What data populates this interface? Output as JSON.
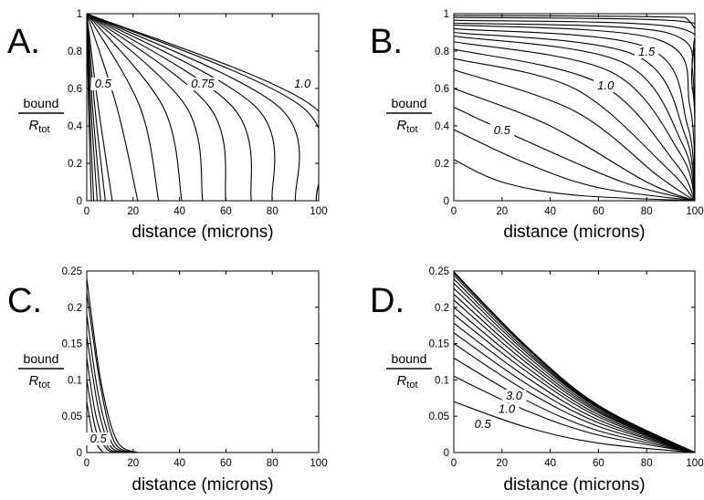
{
  "chart_data": [
    {
      "panel": "A.",
      "type": "line",
      "xlabel": "distance (microns)",
      "ylabel": {
        "top": "bound",
        "bottom_main": "R",
        "bottom_sub": "tot"
      },
      "xlim": [
        0,
        100
      ],
      "ylim": [
        0,
        1
      ],
      "xticks": [
        0,
        20,
        40,
        60,
        80,
        100
      ],
      "yticks": [
        0,
        0.2,
        0.4,
        0.6,
        0.8,
        1
      ],
      "ytick_labels": [
        "0",
        "0.2",
        "0.4",
        "0.6",
        "0.8",
        "1"
      ],
      "series": [
        {
          "values": [
            [
              0,
              1
            ],
            [
              0.8,
              0.5
            ],
            [
              2,
              0
            ]
          ]
        },
        {
          "values": [
            [
              0,
              1
            ],
            [
              1.2,
              0.5
            ],
            [
              3,
              0
            ]
          ]
        },
        {
          "values": [
            [
              0,
              1
            ],
            [
              1.8,
              0.5
            ],
            [
              4.5,
              0
            ]
          ]
        },
        {
          "values": [
            [
              0,
              1
            ],
            [
              2.5,
              0.5
            ],
            [
              6,
              0
            ]
          ]
        },
        {
          "values": [
            [
              0,
              1
            ],
            [
              3.5,
              0.5
            ],
            [
              8,
              0
            ]
          ]
        },
        {
          "values": [
            [
              0,
              1
            ],
            [
              5,
              0.5
            ],
            [
              11,
              0
            ]
          ]
        },
        {
          "values": [
            [
              0,
              1
            ],
            [
              13,
              0.5
            ],
            [
              22,
              0
            ]
          ]
        },
        {
          "values": [
            [
              0,
              1
            ],
            [
              23,
              0.5
            ],
            [
              31,
              0
            ]
          ]
        },
        {
          "values": [
            [
              0,
              1
            ],
            [
              33,
              0.5
            ],
            [
              41,
              0
            ]
          ]
        },
        {
          "values": [
            [
              0,
              1
            ],
            [
              43,
              0.5
            ],
            [
              50,
              0
            ]
          ]
        },
        {
          "values": [
            [
              0,
              1
            ],
            [
              53,
              0.5
            ],
            [
              60,
              0
            ]
          ]
        },
        {
          "values": [
            [
              0,
              1
            ],
            [
              63,
              0.5
            ],
            [
              71,
              0
            ]
          ]
        },
        {
          "values": [
            [
              0,
              1
            ],
            [
              73,
              0.5
            ],
            [
              80,
              0
            ]
          ]
        },
        {
          "values": [
            [
              0,
              1
            ],
            [
              83,
              0.5
            ],
            [
              90,
              0
            ]
          ]
        },
        {
          "values": [
            [
              0,
              1
            ],
            [
              93,
              0.5
            ],
            [
              99,
              0
            ]
          ]
        },
        {
          "values": [
            [
              0,
              1
            ],
            [
              98,
              0.5
            ],
            [
              100,
              0
            ]
          ]
        }
      ],
      "annotations": [
        {
          "text": "0.5",
          "x": 7,
          "y": 0.61
        },
        {
          "text": "0.75",
          "x": 50,
          "y": 0.61
        },
        {
          "text": "1.0",
          "x": 93,
          "y": 0.61
        }
      ]
    },
    {
      "panel": "B.",
      "type": "line",
      "xlabel": "distance (microns)",
      "ylabel": {
        "top": "bound",
        "bottom_main": "R",
        "bottom_sub": "tot"
      },
      "xlim": [
        0,
        100
      ],
      "ylim": [
        0,
        1
      ],
      "xticks": [
        0,
        20,
        40,
        60,
        80,
        100
      ],
      "yticks": [
        0,
        0.2,
        0.4,
        0.6,
        0.8,
        1
      ],
      "ytick_labels": [
        "0",
        "0.2",
        "0.4",
        "0.6",
        "0.8",
        "1"
      ],
      "series": [
        {
          "values": [
            [
              0,
              0.22
            ],
            [
              20,
              0.1
            ],
            [
              50,
              0.03
            ],
            [
              100,
              0
            ]
          ]
        },
        {
          "values": [
            [
              0,
              0.38
            ],
            [
              30,
              0.2
            ],
            [
              60,
              0.07
            ],
            [
              100,
              0
            ]
          ]
        },
        {
          "values": [
            [
              0,
              0.5
            ],
            [
              30,
              0.32
            ],
            [
              70,
              0.1
            ],
            [
              100,
              0
            ]
          ]
        },
        {
          "values": [
            [
              0,
              0.6
            ],
            [
              40,
              0.4
            ],
            [
              80,
              0.1
            ],
            [
              100,
              0
            ]
          ]
        },
        {
          "values": [
            [
              0,
              0.7
            ],
            [
              50,
              0.48
            ],
            [
              85,
              0.13
            ],
            [
              100,
              0
            ]
          ]
        },
        {
          "values": [
            [
              0,
              0.76
            ],
            [
              50,
              0.6
            ],
            [
              88,
              0.18
            ],
            [
              100,
              0
            ]
          ]
        },
        {
          "values": [
            [
              0,
              0.81
            ],
            [
              60,
              0.63
            ],
            [
              92,
              0.2
            ],
            [
              100,
              0
            ]
          ]
        },
        {
          "values": [
            [
              0,
              0.85
            ],
            [
              65,
              0.69
            ],
            [
              94,
              0.25
            ],
            [
              100,
              0
            ]
          ]
        },
        {
          "values": [
            [
              0,
              0.88
            ],
            [
              70,
              0.74
            ],
            [
              95,
              0.3
            ],
            [
              100,
              0
            ]
          ]
        },
        {
          "values": [
            [
              0,
              0.9
            ],
            [
              75,
              0.78
            ],
            [
              96,
              0.35
            ],
            [
              100,
              0
            ]
          ]
        },
        {
          "values": [
            [
              0,
              0.92
            ],
            [
              80,
              0.82
            ],
            [
              97,
              0.4
            ],
            [
              100,
              0
            ]
          ]
        },
        {
          "values": [
            [
              0,
              0.94
            ],
            [
              85,
              0.86
            ],
            [
              98,
              0.5
            ],
            [
              100,
              0
            ]
          ]
        },
        {
          "values": [
            [
              0,
              0.95
            ],
            [
              88,
              0.9
            ],
            [
              99,
              0.6
            ],
            [
              100,
              0
            ]
          ]
        },
        {
          "values": [
            [
              0,
              0.965
            ],
            [
              91,
              0.93
            ],
            [
              99,
              0.7
            ],
            [
              100,
              0
            ]
          ]
        },
        {
          "values": [
            [
              0,
              0.98
            ],
            [
              94,
              0.96
            ],
            [
              99.5,
              0.8
            ],
            [
              100,
              0
            ]
          ]
        },
        {
          "values": [
            [
              0,
              0.99
            ],
            [
              96,
              0.98
            ],
            [
              100,
              0
            ]
          ]
        }
      ],
      "annotations": [
        {
          "text": "0.5",
          "x": 20,
          "y": 0.36
        },
        {
          "text": "1.0",
          "x": 63,
          "y": 0.6
        },
        {
          "text": "1.5",
          "x": 80,
          "y": 0.78
        }
      ]
    },
    {
      "panel": "C.",
      "type": "line",
      "xlabel": "distance (microns)",
      "ylabel": {
        "top": "bound",
        "bottom_main": "R",
        "bottom_sub": "tot"
      },
      "xlim": [
        0,
        100
      ],
      "ylim": [
        0,
        0.25
      ],
      "xticks": [
        0,
        20,
        40,
        60,
        80,
        100
      ],
      "yticks": [
        0,
        0.05,
        0.1,
        0.15,
        0.2,
        0.25
      ],
      "ytick_labels": [
        "0",
        "0.05",
        "0.1",
        "0.15",
        "0.2",
        "0.25"
      ],
      "series": [
        {
          "values": [
            [
              0,
              0.07
            ],
            [
              3,
              0.02
            ],
            [
              7,
              0
            ]
          ]
        },
        {
          "values": [
            [
              0,
              0.1
            ],
            [
              4,
              0.03
            ],
            [
              9,
              0.004
            ],
            [
              12,
              0
            ]
          ]
        },
        {
          "values": [
            [
              0,
              0.13
            ],
            [
              4,
              0.05
            ],
            [
              9,
              0.008
            ],
            [
              14,
              0
            ]
          ]
        },
        {
          "values": [
            [
              0,
              0.16
            ],
            [
              5,
              0.06
            ],
            [
              10,
              0.01
            ],
            [
              16,
              0
            ]
          ]
        },
        {
          "values": [
            [
              0,
              0.19
            ],
            [
              5,
              0.08
            ],
            [
              11,
              0.012
            ],
            [
              18,
              0
            ]
          ]
        },
        {
          "values": [
            [
              0,
              0.22
            ],
            [
              6,
              0.09
            ],
            [
              12,
              0.014
            ],
            [
              20,
              0
            ]
          ]
        },
        {
          "values": [
            [
              0,
              0.24
            ],
            [
              6,
              0.1
            ],
            [
              13,
              0.016
            ],
            [
              22,
              0
            ]
          ]
        }
      ],
      "annotations": [
        {
          "text": "0.5",
          "x": 5,
          "y": 0.015
        }
      ]
    },
    {
      "panel": "D.",
      "type": "line",
      "xlabel": "distance (microns)",
      "ylabel": {
        "top": "bound",
        "bottom_main": "R",
        "bottom_sub": "tot"
      },
      "xlim": [
        0,
        100
      ],
      "ylim": [
        0,
        0.25
      ],
      "xticks": [
        0,
        20,
        40,
        60,
        80,
        100
      ],
      "yticks": [
        0,
        0.05,
        0.1,
        0.15,
        0.2,
        0.25
      ],
      "ytick_labels": [
        "0",
        "0.05",
        "0.1",
        "0.15",
        "0.2",
        "0.25"
      ],
      "series": [
        {
          "values": [
            [
              0,
              0.07
            ],
            [
              30,
              0.035
            ],
            [
              60,
              0.013
            ],
            [
              100,
              0
            ]
          ]
        },
        {
          "values": [
            [
              0,
              0.105
            ],
            [
              30,
              0.058
            ],
            [
              60,
              0.024
            ],
            [
              100,
              0
            ]
          ]
        },
        {
          "values": [
            [
              0,
              0.13
            ],
            [
              30,
              0.072
            ],
            [
              60,
              0.03
            ],
            [
              100,
              0
            ]
          ]
        },
        {
          "values": [
            [
              0,
              0.15
            ],
            [
              30,
              0.085
            ],
            [
              60,
              0.036
            ],
            [
              100,
              0
            ]
          ]
        },
        {
          "values": [
            [
              0,
              0.165
            ],
            [
              30,
              0.095
            ],
            [
              60,
              0.041
            ],
            [
              100,
              0
            ]
          ]
        },
        {
          "values": [
            [
              0,
              0.178
            ],
            [
              30,
              0.104
            ],
            [
              60,
              0.045
            ],
            [
              100,
              0
            ]
          ]
        },
        {
          "values": [
            [
              0,
              0.19
            ],
            [
              30,
              0.112
            ],
            [
              60,
              0.049
            ],
            [
              100,
              0
            ]
          ]
        },
        {
          "values": [
            [
              0,
              0.2
            ],
            [
              30,
              0.118
            ],
            [
              60,
              0.052
            ],
            [
              100,
              0
            ]
          ]
        },
        {
          "values": [
            [
              0,
              0.21
            ],
            [
              30,
              0.124
            ],
            [
              60,
              0.055
            ],
            [
              100,
              0
            ]
          ]
        },
        {
          "values": [
            [
              0,
              0.218
            ],
            [
              30,
              0.129
            ],
            [
              60,
              0.057
            ],
            [
              100,
              0
            ]
          ]
        },
        {
          "values": [
            [
              0,
              0.226
            ],
            [
              30,
              0.134
            ],
            [
              60,
              0.059
            ],
            [
              100,
              0
            ]
          ]
        },
        {
          "values": [
            [
              0,
              0.233
            ],
            [
              30,
              0.138
            ],
            [
              60,
              0.061
            ],
            [
              100,
              0
            ]
          ]
        },
        {
          "values": [
            [
              0,
              0.239
            ],
            [
              30,
              0.141
            ],
            [
              60,
              0.062
            ],
            [
              100,
              0
            ]
          ]
        },
        {
          "values": [
            [
              0,
              0.244
            ],
            [
              30,
              0.144
            ],
            [
              60,
              0.063
            ],
            [
              100,
              0
            ]
          ]
        },
        {
          "values": [
            [
              0,
              0.247
            ],
            [
              30,
              0.146
            ],
            [
              60,
              0.064
            ],
            [
              100,
              0
            ]
          ]
        },
        {
          "values": [
            [
              0,
              0.249
            ],
            [
              30,
              0.147
            ],
            [
              60,
              0.065
            ],
            [
              100,
              0
            ]
          ]
        }
      ],
      "annotations": [
        {
          "text": "0.5",
          "x": 12,
          "y": 0.035
        },
        {
          "text": "1.0",
          "x": 22,
          "y": 0.056
        },
        {
          "text": "3.0",
          "x": 25,
          "y": 0.074
        }
      ]
    }
  ]
}
